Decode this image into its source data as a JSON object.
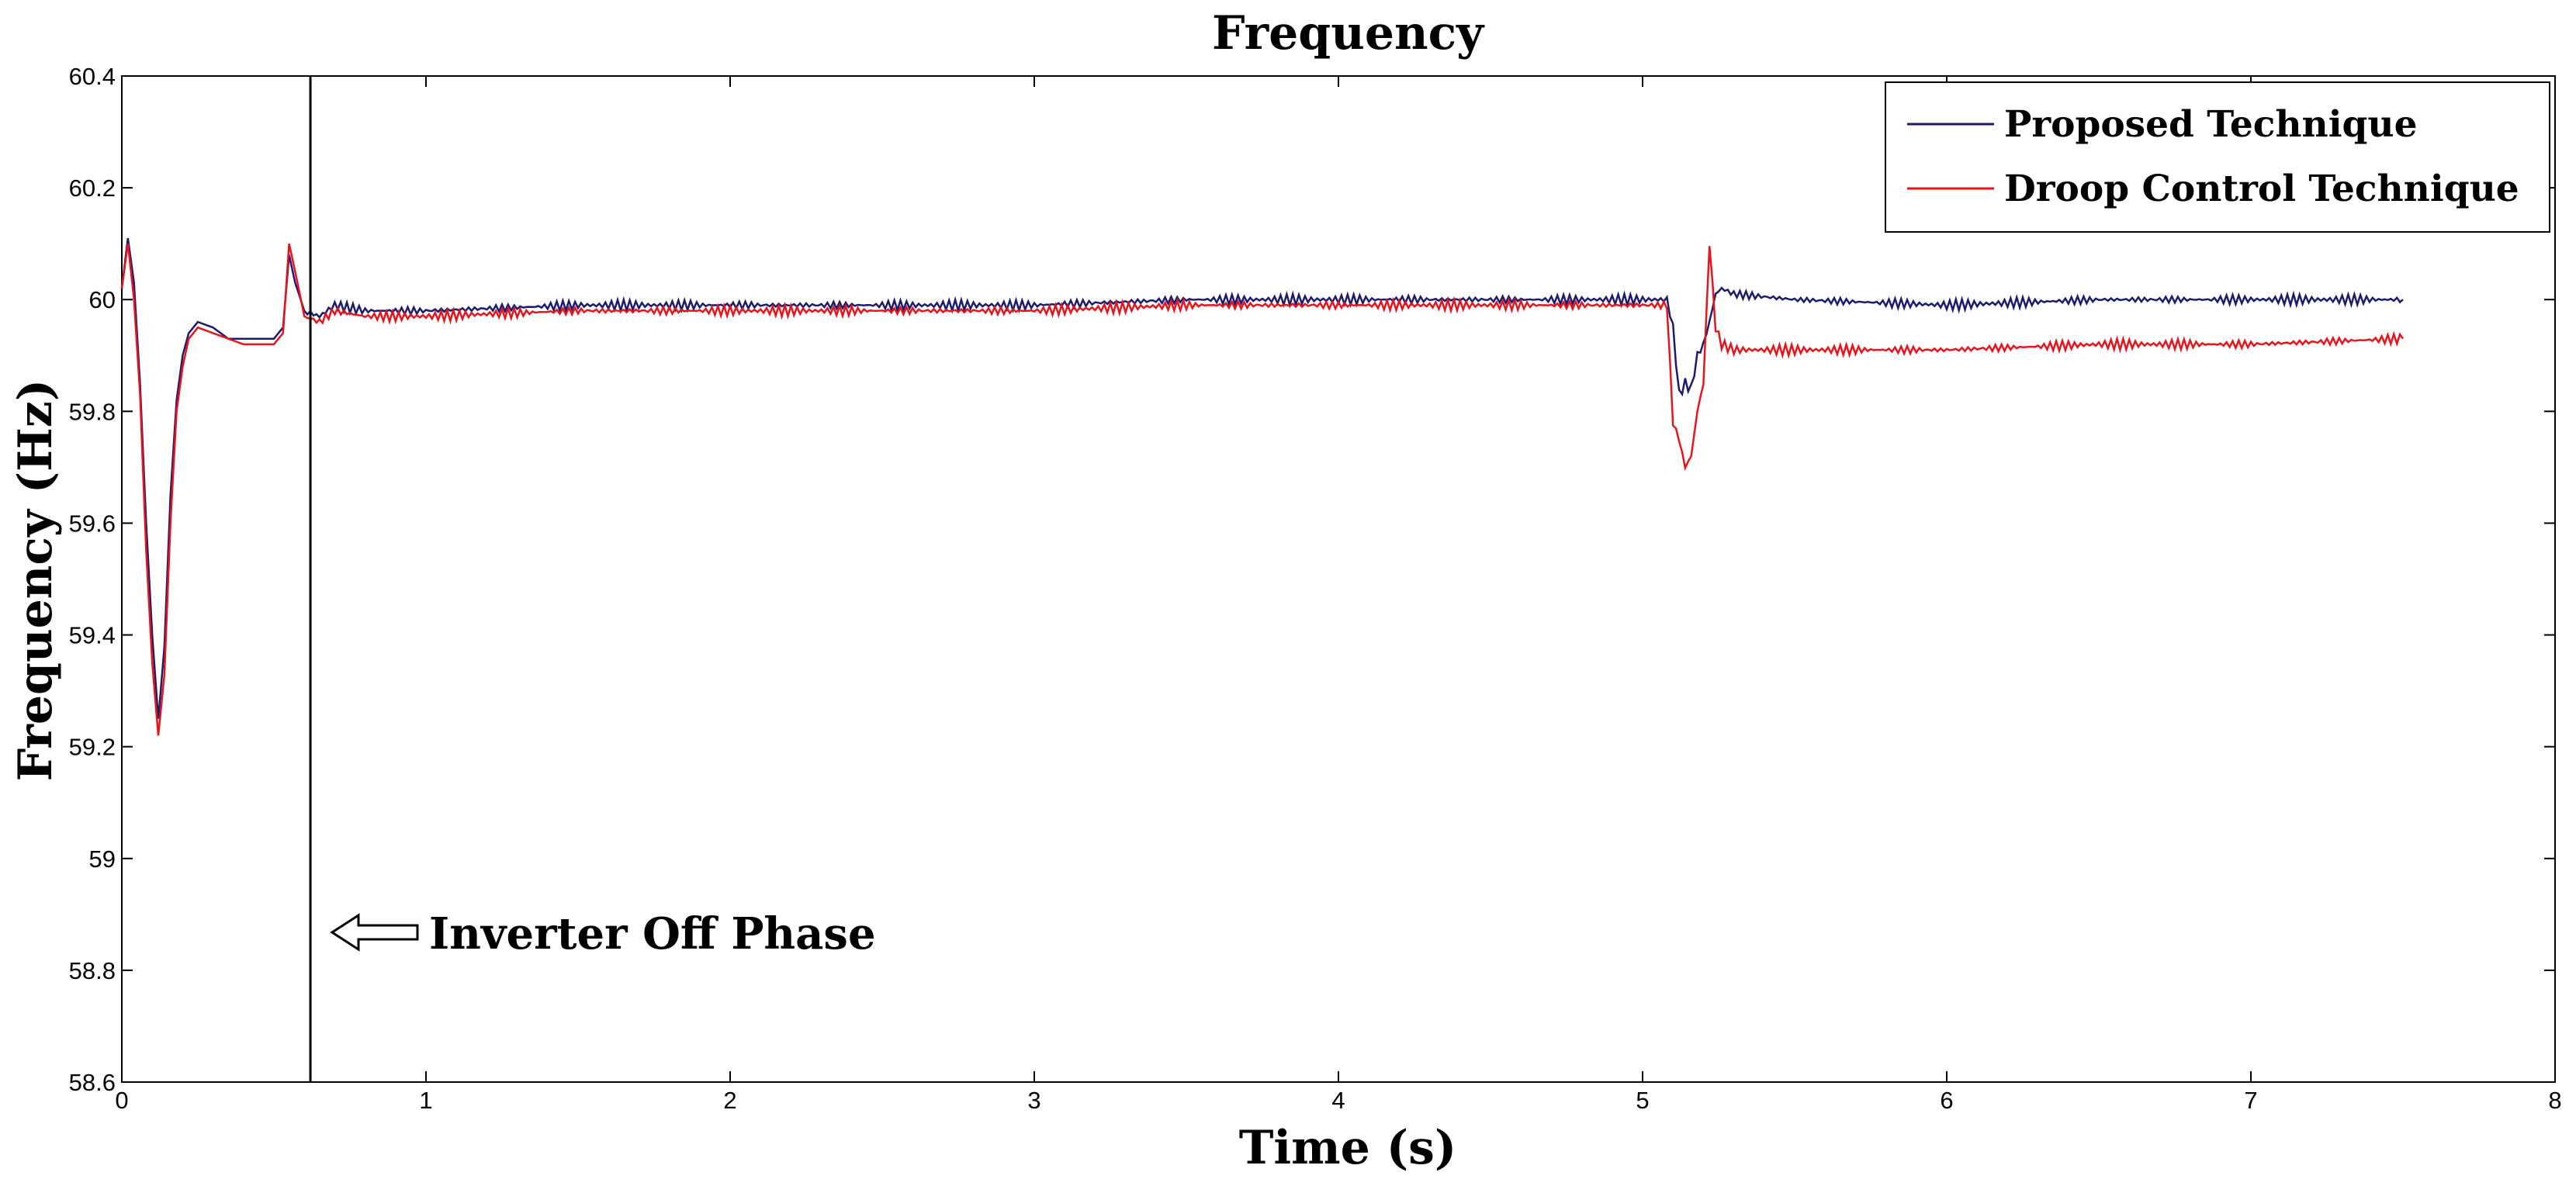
{
  "chart_data": {
    "type": "line",
    "title": "Frequency",
    "xlabel": "Time (s)",
    "ylabel": "Frequency (Hz)",
    "xlim": [
      0,
      8
    ],
    "ylim": [
      58.6,
      60.4
    ],
    "xticks": [
      0,
      1,
      2,
      3,
      4,
      5,
      6,
      7,
      8
    ],
    "xtick_labels": [
      "0",
      "1",
      "2",
      "3",
      "4",
      "5",
      "6",
      "7",
      "8"
    ],
    "yticks": [
      58.6,
      58.8,
      59,
      59.2,
      59.4,
      59.6,
      59.8,
      60,
      60.2,
      60.4
    ],
    "ytick_labels": [
      "58.6",
      "58.8",
      "59",
      "59.2",
      "59.4",
      "59.6",
      "59.8",
      "60",
      "60.2",
      "60.4"
    ],
    "grid": false,
    "legend_position": "top-right",
    "annotation": {
      "text": "Inverter Off Phase",
      "marker_x": 0.62
    },
    "series": [
      {
        "name": "Proposed Technique",
        "color": "#1c1c6e",
        "x": [
          0,
          0.02,
          0.04,
          0.06,
          0.08,
          0.1,
          0.12,
          0.14,
          0.16,
          0.18,
          0.2,
          0.22,
          0.25,
          0.3,
          0.35,
          0.4,
          0.45,
          0.5,
          0.53,
          0.55,
          0.57,
          0.6,
          0.65,
          0.7,
          0.8,
          1,
          1.5,
          2,
          2.5,
          3,
          3.5,
          4,
          4.5,
          5,
          5.08,
          5.1,
          5.12,
          5.14,
          5.16,
          5.18,
          5.2,
          5.22,
          5.24,
          5.26,
          5.3,
          5.5,
          6,
          6.5,
          7,
          7.5
        ],
        "y": [
          60.02,
          60.11,
          60.03,
          59.85,
          59.6,
          59.4,
          59.25,
          59.38,
          59.65,
          59.82,
          59.9,
          59.94,
          59.96,
          59.95,
          59.93,
          59.93,
          59.93,
          59.93,
          59.95,
          60.08,
          60.03,
          59.98,
          59.97,
          59.99,
          59.98,
          59.98,
          59.99,
          59.99,
          59.99,
          59.99,
          60.0,
          60.0,
          60.0,
          60.0,
          60.0,
          59.95,
          59.83,
          59.85,
          59.84,
          59.9,
          59.92,
          59.96,
          60.01,
          60.02,
          60.01,
          60.0,
          59.99,
          60.0,
          60.0,
          60.0
        ]
      },
      {
        "name": "Droop Control Technique",
        "color": "#e8141c",
        "x": [
          0,
          0.02,
          0.04,
          0.06,
          0.08,
          0.1,
          0.12,
          0.14,
          0.16,
          0.18,
          0.2,
          0.22,
          0.25,
          0.3,
          0.35,
          0.4,
          0.45,
          0.5,
          0.53,
          0.55,
          0.57,
          0.6,
          0.65,
          0.7,
          0.8,
          1,
          1.5,
          2,
          2.5,
          3,
          3.5,
          4,
          4.5,
          5,
          5.08,
          5.1,
          5.12,
          5.14,
          5.16,
          5.18,
          5.2,
          5.22,
          5.24,
          5.26,
          5.3,
          5.5,
          6,
          6.5,
          7,
          7.5
        ],
        "y": [
          60.02,
          60.1,
          60.0,
          59.83,
          59.55,
          59.35,
          59.22,
          59.33,
          59.6,
          59.8,
          59.88,
          59.93,
          59.95,
          59.94,
          59.93,
          59.92,
          59.92,
          59.92,
          59.94,
          60.1,
          60.05,
          59.97,
          59.96,
          59.98,
          59.97,
          59.97,
          59.98,
          59.98,
          59.98,
          59.98,
          59.99,
          59.99,
          59.99,
          59.99,
          59.99,
          59.78,
          59.75,
          59.7,
          59.72,
          59.8,
          59.85,
          60.1,
          59.95,
          59.92,
          59.91,
          59.91,
          59.91,
          59.92,
          59.92,
          59.93
        ]
      }
    ]
  }
}
